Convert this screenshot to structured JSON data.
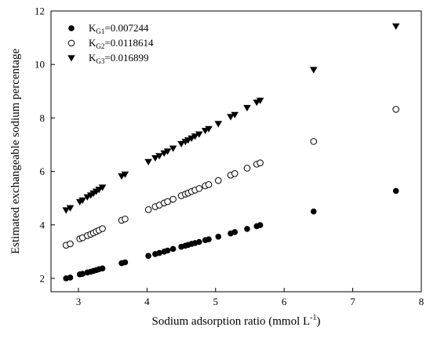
{
  "chart_data": {
    "type": "scatter",
    "xlabel": "Sodium adsorption ratio (mmol L",
    "xlabel_sup": "-1",
    "xlabel_end": ")",
    "ylabel": "Estimated exchangeable sodium percentage",
    "xlim": [
      2.6,
      8
    ],
    "ylim": [
      1.5,
      12
    ],
    "xticks": [
      3,
      4,
      5,
      6,
      7,
      8
    ],
    "yticks": [
      2,
      4,
      6,
      8,
      10,
      12
    ],
    "grid": false,
    "legend_position": "top-left",
    "x": [
      2.82,
      2.88,
      3.02,
      3.06,
      3.13,
      3.18,
      3.22,
      3.26,
      3.3,
      3.35,
      3.63,
      3.68,
      4.02,
      4.12,
      4.18,
      4.25,
      4.3,
      4.38,
      4.5,
      4.56,
      4.6,
      4.65,
      4.7,
      4.76,
      4.85,
      4.9,
      5.04,
      5.22,
      5.28,
      5.46,
      5.6,
      5.65,
      6.43,
      7.63
    ],
    "series": [
      {
        "name_main": "K",
        "name_sub": "G1",
        "name_value": "=0.007244",
        "marker": "filled-circle",
        "values": [
          2.0,
          2.03,
          2.15,
          2.17,
          2.22,
          2.25,
          2.28,
          2.31,
          2.34,
          2.37,
          2.57,
          2.6,
          2.84,
          2.91,
          2.95,
          3.0,
          3.04,
          3.1,
          3.18,
          3.22,
          3.25,
          3.29,
          3.32,
          3.36,
          3.43,
          3.46,
          3.56,
          3.68,
          3.73,
          3.85,
          3.95,
          3.99,
          4.5,
          5.27
        ]
      },
      {
        "name_main": "K",
        "name_sub": "G2",
        "name_value": "=0.0118614",
        "marker": "open-circle",
        "values": [
          3.24,
          3.29,
          3.48,
          3.52,
          3.6,
          3.65,
          3.7,
          3.75,
          3.8,
          3.86,
          4.17,
          4.22,
          4.57,
          4.68,
          4.74,
          4.82,
          4.87,
          4.96,
          5.09,
          5.15,
          5.19,
          5.25,
          5.3,
          5.36,
          5.46,
          5.51,
          5.66,
          5.86,
          5.92,
          6.12,
          6.27,
          6.32,
          7.12,
          8.32
        ]
      },
      {
        "name_main": "K",
        "name_sub": "G3",
        "name_value": "=0.016899",
        "marker": "filled-triangle-down",
        "values": [
          4.55,
          4.63,
          4.86,
          4.92,
          5.04,
          5.11,
          5.18,
          5.25,
          5.32,
          5.4,
          5.82,
          5.89,
          6.36,
          6.5,
          6.58,
          6.68,
          6.75,
          6.86,
          7.03,
          7.11,
          7.17,
          7.24,
          7.31,
          7.39,
          7.52,
          7.59,
          7.78,
          8.04,
          8.12,
          8.38,
          8.58,
          8.65,
          9.8,
          11.43
        ]
      }
    ]
  }
}
